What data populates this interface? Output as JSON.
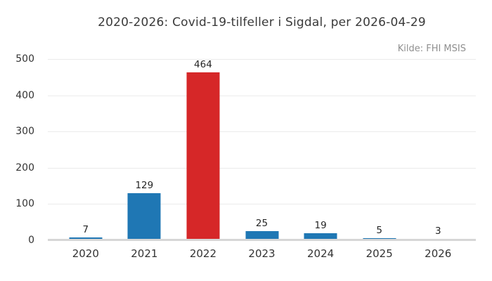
{
  "chart_data": {
    "type": "bar",
    "title": "2020-2026: Covid-19-tilfeller i Sigdal, per 2026-04-29",
    "source": "Kilde: FHI MSIS",
    "categories": [
      "2020",
      "2021",
      "2022",
      "2023",
      "2024",
      "2025",
      "2026"
    ],
    "values": [
      7,
      129,
      464,
      25,
      19,
      5,
      3
    ],
    "value_labels_shown": true,
    "bar_colors": [
      "#1f77b4",
      "#1f77b4",
      "#d62728",
      "#1f77b4",
      "#1f77b4",
      "#1f77b4",
      "#1f77b4"
    ],
    "highlight_category": "2022",
    "xlabel": "",
    "ylabel": "",
    "ylim": [
      0,
      500
    ],
    "yticks": [
      0,
      100,
      200,
      300,
      400,
      500
    ],
    "grid": "horizontal",
    "legend": "none"
  },
  "colors": {
    "bar_blue": "#1f77b4",
    "bar_red": "#d62728",
    "gridline": "#ebebeb",
    "zero_axis_line": "#d6d6d6",
    "title_text": "#3a3a3a",
    "tick_text": "#333333",
    "value_text": "#262626",
    "source_text": "#8f8f8f",
    "background": "#ffffff"
  }
}
